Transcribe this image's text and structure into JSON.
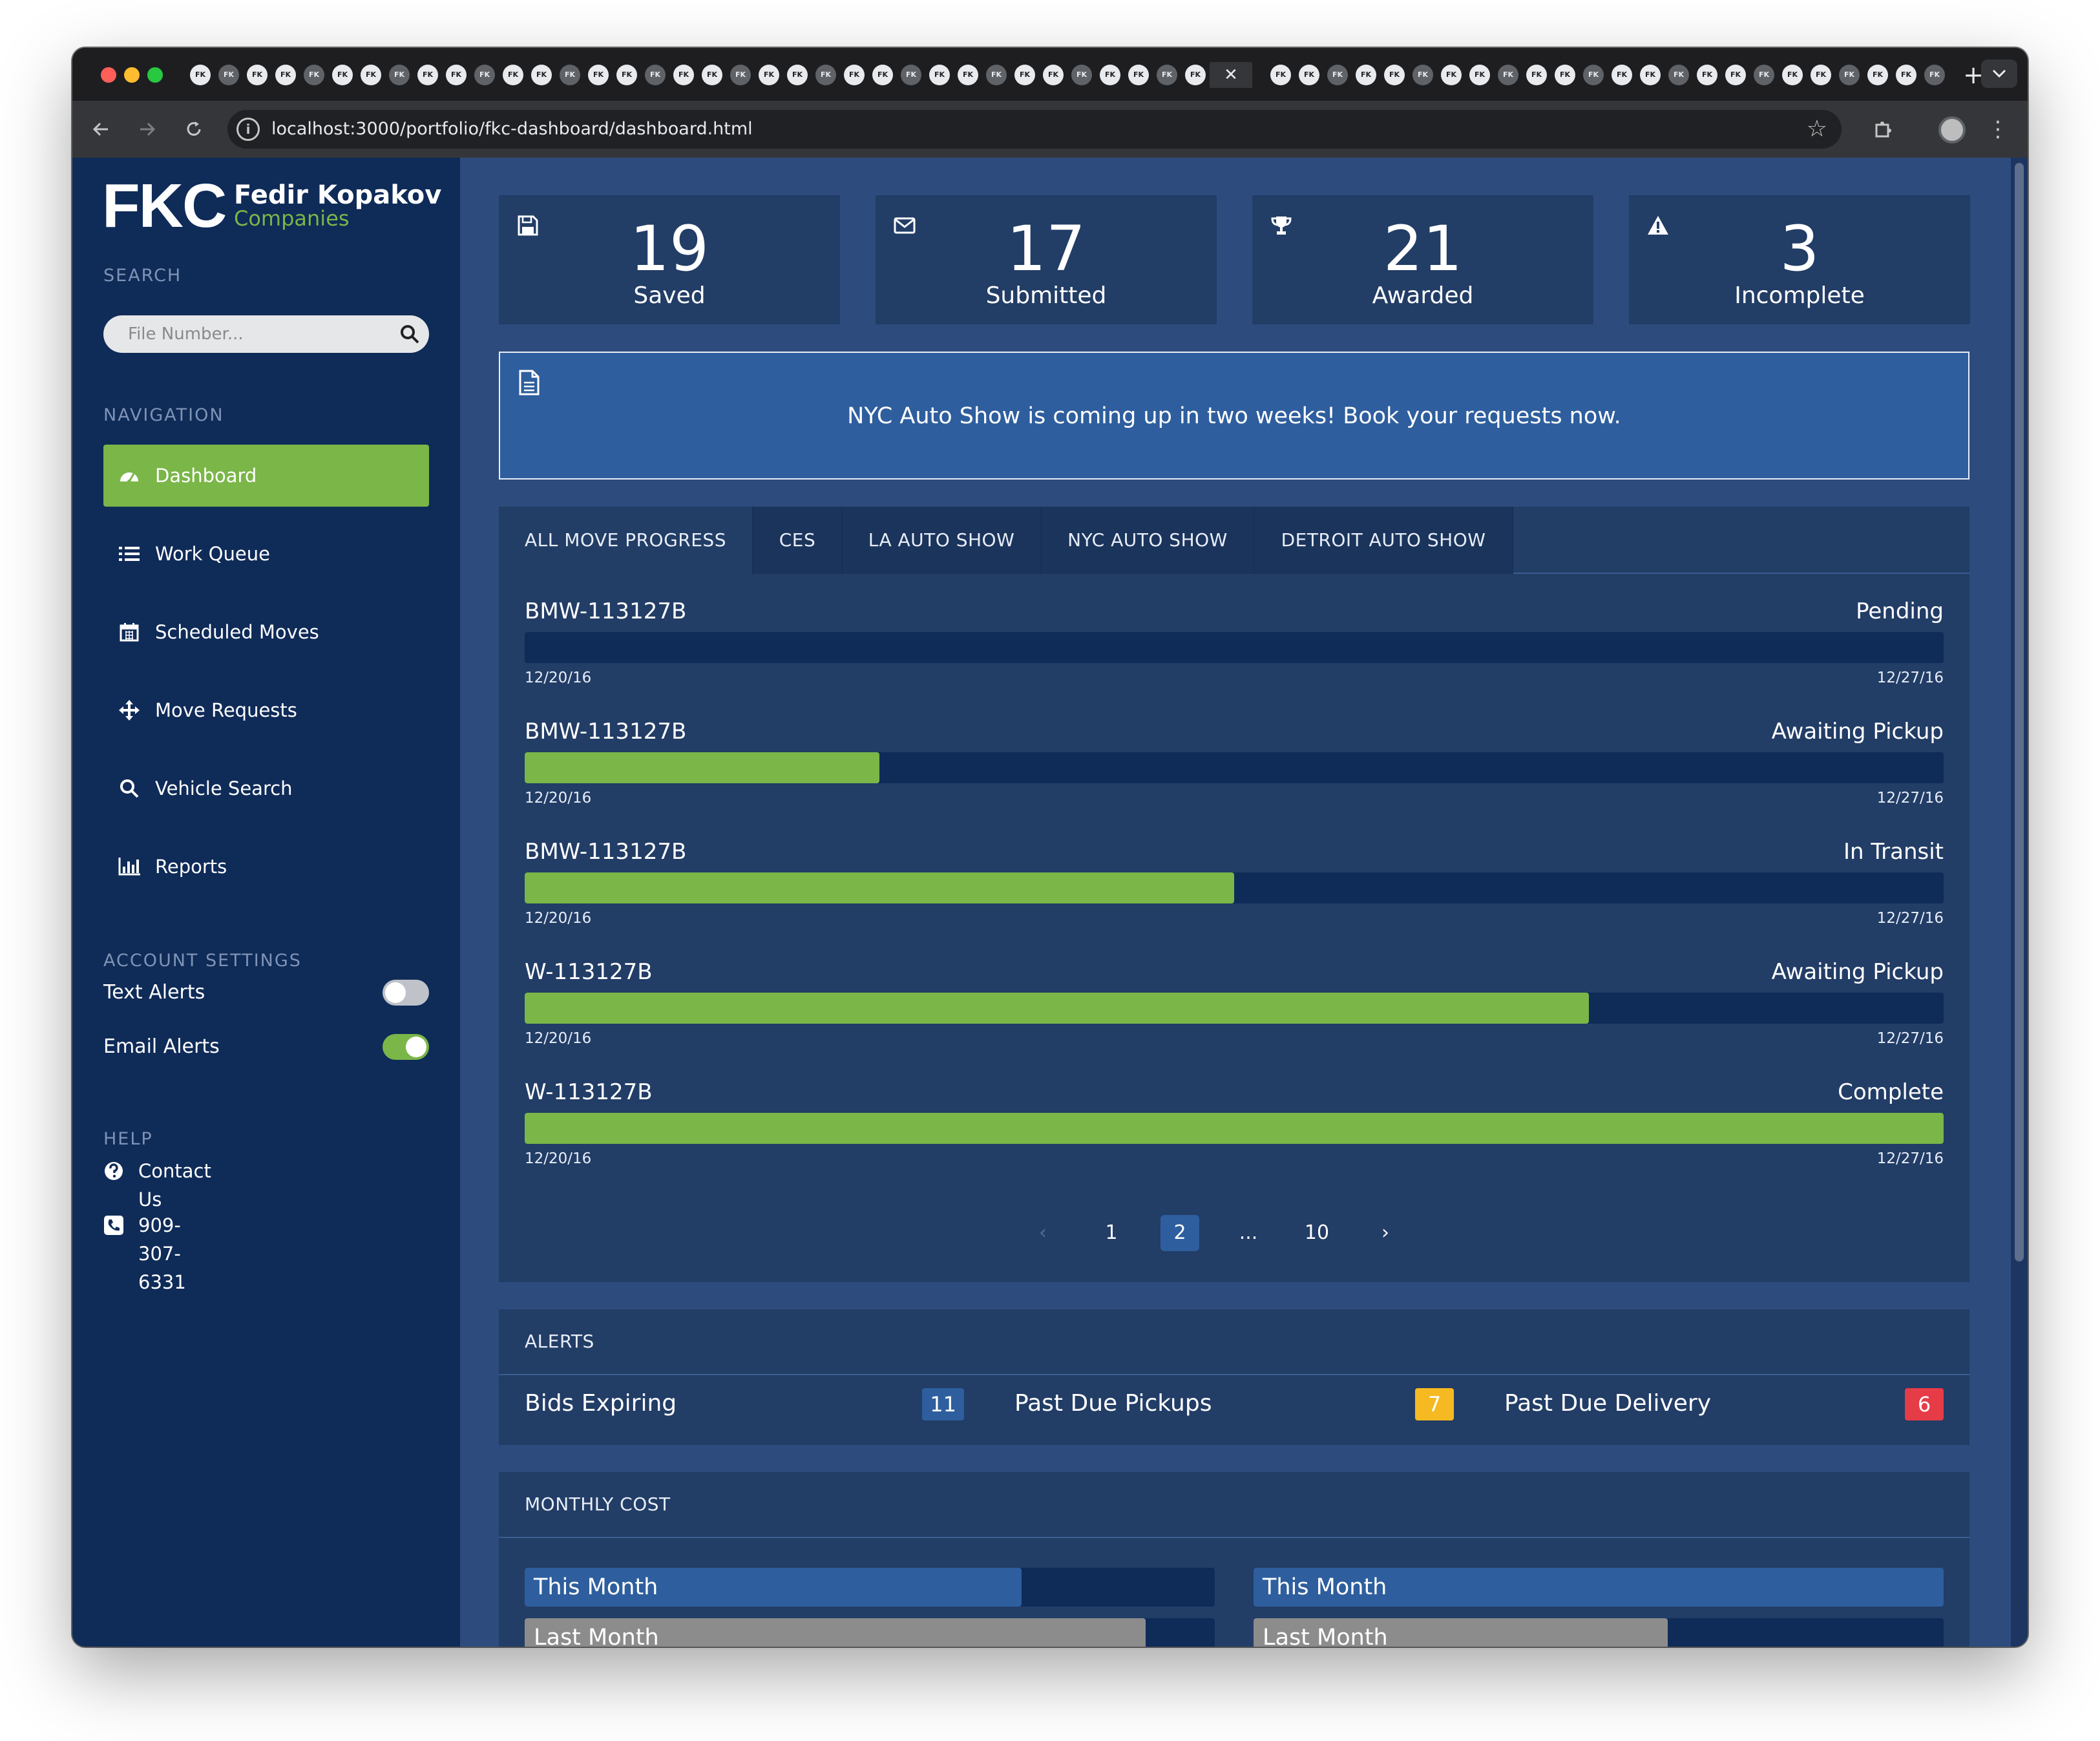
{
  "browser": {
    "url": "localhost:3000/portfolio/fkc-dashboard/dashboard.html",
    "active_tab_close": "✕",
    "new_tab": "+",
    "tab_icon_text": "FK",
    "tab_menu_icon": "chevron-down-icon",
    "back_icon": "arrow-left-icon",
    "forward_icon": "arrow-right-icon",
    "reload_icon": "reload-icon",
    "star_icon": "star-icon",
    "extensions_icon": "puzzle-icon",
    "menu_icon": "kebab-icon"
  },
  "brand": {
    "mark": "FKC",
    "name": "Fedir Kopakov",
    "sub": "Companies",
    "accent": "#7ab648"
  },
  "sidebar": {
    "search_heading": "SEARCH",
    "search_placeholder": "File Number...",
    "nav_heading": "NAVIGATION",
    "nav_items": [
      {
        "label": "Dashboard",
        "icon": "dashboard-icon",
        "active": true
      },
      {
        "label": "Work Queue",
        "icon": "list-icon",
        "active": false
      },
      {
        "label": "Scheduled Moves",
        "icon": "calendar-icon",
        "active": false
      },
      {
        "label": "Move Requests",
        "icon": "arrows-icon",
        "active": false
      },
      {
        "label": "Vehicle Search",
        "icon": "search-icon",
        "active": false
      },
      {
        "label": "Reports",
        "icon": "bar-chart-icon",
        "active": false
      }
    ],
    "account_heading": "ACCOUNT SETTINGS",
    "settings": [
      {
        "label": "Text Alerts",
        "on": false
      },
      {
        "label": "Email Alerts",
        "on": true
      }
    ],
    "help_heading": "HELP",
    "help_items": [
      {
        "label": "Contact Us",
        "icon": "question-circle-icon"
      },
      {
        "label": "909-307-6331",
        "icon": "phone-icon"
      }
    ]
  },
  "stats": [
    {
      "value": "19",
      "label": "Saved",
      "icon": "save-icon"
    },
    {
      "value": "17",
      "label": "Submitted",
      "icon": "envelope-icon"
    },
    {
      "value": "21",
      "label": "Awarded",
      "icon": "trophy-icon"
    },
    {
      "value": "3",
      "label": "Incomplete",
      "icon": "warning-icon"
    }
  ],
  "announcement": {
    "icon": "document-icon",
    "text": "NYC Auto Show is coming up in two weeks! Book your requests now."
  },
  "progress_tabs": [
    "ALL MOVE PROGRESS",
    "CES",
    "LA AUTO SHOW",
    "NYC AUTO SHOW",
    "DETROIT AUTO SHOW"
  ],
  "progress_rows": [
    {
      "name": "BMW-113127B",
      "status": "Pending",
      "start": "12/20/16",
      "end": "12/27/16",
      "progress": 0.0
    },
    {
      "name": "BMW-113127B",
      "status": "Awaiting Pickup",
      "start": "12/20/16",
      "end": "12/27/16",
      "progress": 0.25
    },
    {
      "name": "BMW-113127B",
      "status": "In Transit",
      "start": "12/20/16",
      "end": "12/27/16",
      "progress": 0.5
    },
    {
      "name": "W-113127B",
      "status": "Awaiting Pickup",
      "start": "12/20/16",
      "end": "12/27/16",
      "progress": 0.75
    },
    {
      "name": "W-113127B",
      "status": "Complete",
      "start": "12/20/16",
      "end": "12/27/16",
      "progress": 1.0
    }
  ],
  "pagination": {
    "prev": "‹",
    "pages": [
      "1",
      "2",
      "...",
      "10"
    ],
    "active": "2",
    "next": "›"
  },
  "alerts": {
    "title": "ALERTS",
    "items": [
      {
        "label": "Bids Expiring",
        "count": "11",
        "color": "#2e5e9e"
      },
      {
        "label": "Past Due Pickups",
        "count": "7",
        "color": "#f5b921"
      },
      {
        "label": "Past Due Delivery",
        "count": "6",
        "color": "#e63c48"
      }
    ]
  },
  "monthly_cost": {
    "title": "MONTHLY COST",
    "columns": [
      {
        "this_month": {
          "label": "This Month",
          "value": 0.72
        },
        "last_month": {
          "label": "Last Month",
          "value": 0.9
        }
      },
      {
        "this_month": {
          "label": "This Month",
          "value": 1.0
        },
        "last_month": {
          "label": "Last Month",
          "value": 0.6
        }
      }
    ]
  }
}
